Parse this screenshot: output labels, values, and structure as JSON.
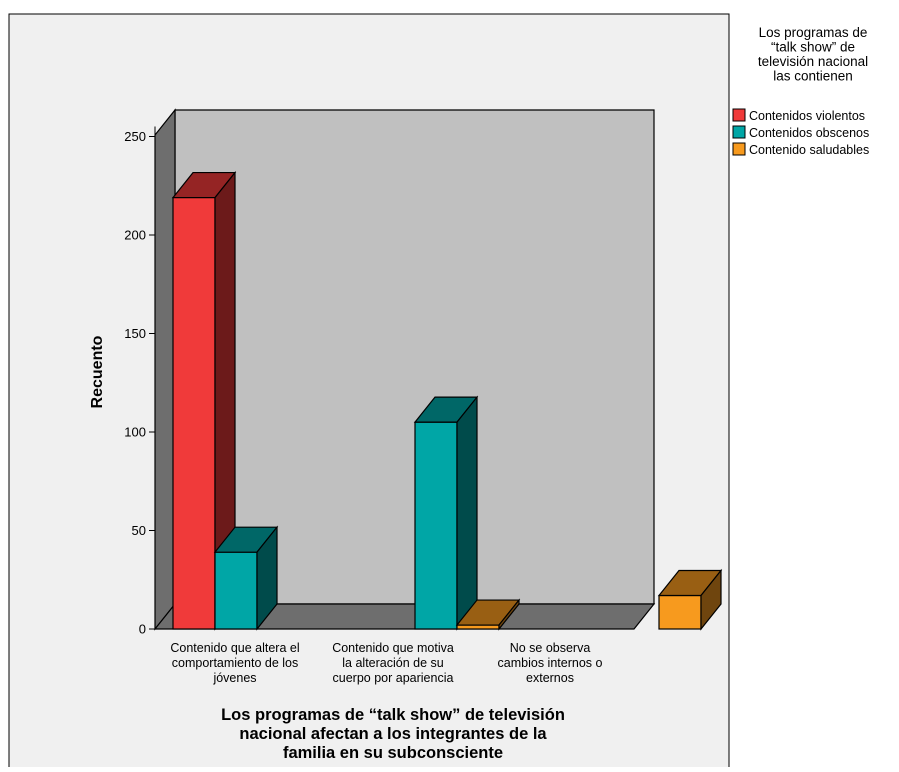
{
  "chart_data": {
    "type": "bar",
    "categories": [
      "Contenido que altera el comportamiento de los jóvenes",
      "Contenido que motiva la alteración de su cuerpo por apariencia",
      "No se observa cambios internos o externos"
    ],
    "category_lines": [
      [
        "Contenido que altera el",
        "comportamiento de los",
        "jóvenes"
      ],
      [
        "Contenido que motiva",
        "la alteración de su",
        "cuerpo por apariencia"
      ],
      [
        "No se observa",
        "cambios internos o",
        "externos"
      ]
    ],
    "series": [
      {
        "name": "Contenidos violentos",
        "color": "#f03a3a",
        "values": [
          219,
          0,
          0
        ]
      },
      {
        "name": "Contenidos obscenos",
        "color": "#00a6a6",
        "values": [
          39,
          105,
          0
        ]
      },
      {
        "name": "Contenido saludables",
        "color": "#f79a1e",
        "values": [
          0,
          2,
          17
        ]
      }
    ],
    "ylabel": "Recuento",
    "xlabel_lines": [
      "Los programas de “talk show” de televisión",
      "nacional afectan a los integrantes de la",
      "familia en su subconsciente"
    ],
    "ylim": [
      0,
      250
    ],
    "yticks": [
      0,
      50,
      100,
      150,
      200,
      250
    ],
    "legend": {
      "title_lines": [
        "Los programas de",
        "“talk show” de",
        "televisión nacional",
        "las contienen"
      ],
      "position": "right"
    },
    "grid": false,
    "style": "3d"
  }
}
